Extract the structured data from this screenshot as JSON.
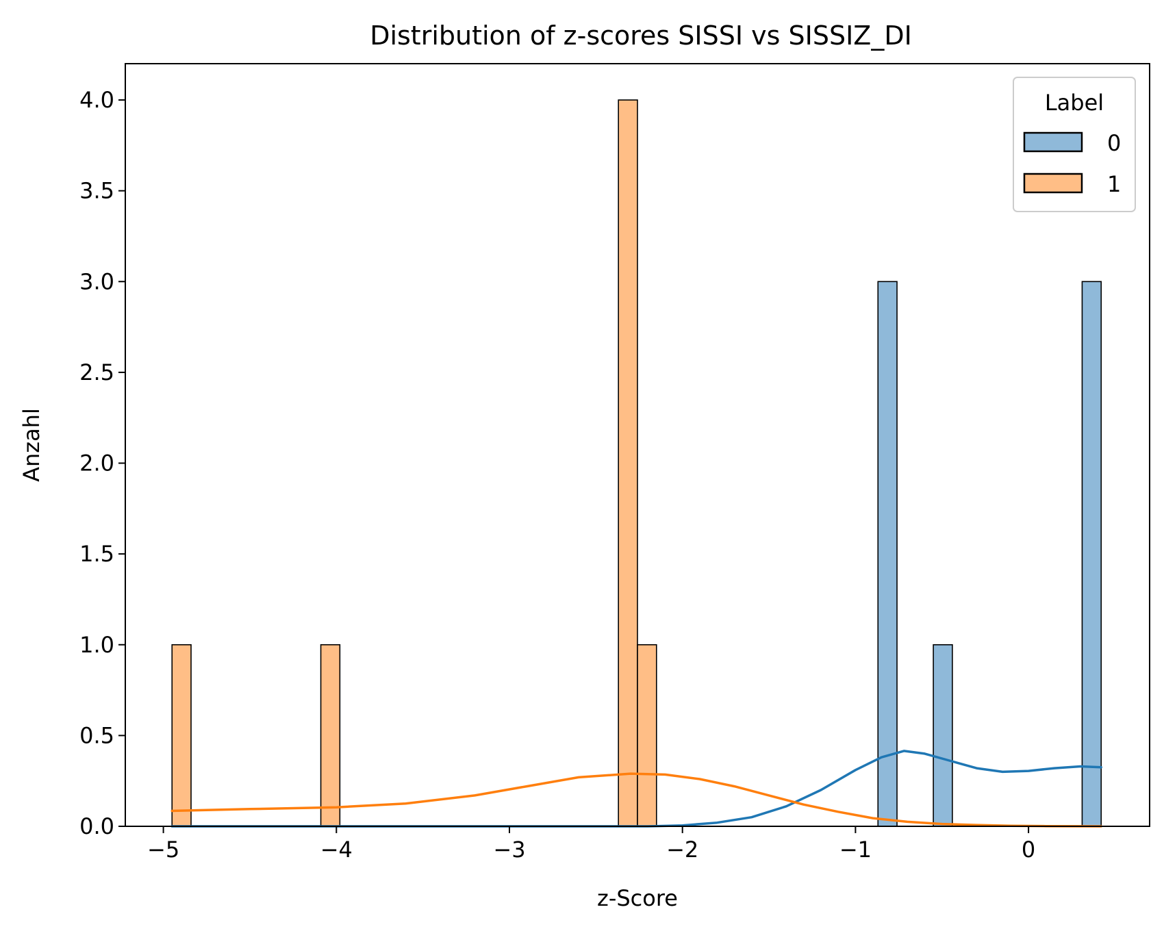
{
  "chart_data": {
    "type": "bar",
    "title": "Distribution of z-scores SISSI vs SISSIZ_DI",
    "xlabel": "z-Score",
    "ylabel": "Anzahl",
    "xlim": [
      -5.22,
      0.7
    ],
    "ylim": [
      0,
      4.2
    ],
    "xticks": [
      -5,
      -4,
      -3,
      -2,
      -1,
      0
    ],
    "xtick_labels": [
      "−5",
      "−4",
      "−3",
      "−2",
      "−1",
      "0"
    ],
    "yticks": [
      0.0,
      0.5,
      1.0,
      1.5,
      2.0,
      2.5,
      3.0,
      3.5,
      4.0
    ],
    "ytick_labels": [
      "0.0",
      "0.5",
      "1.0",
      "1.5",
      "2.0",
      "2.5",
      "3.0",
      "3.5",
      "4.0"
    ],
    "grid": false,
    "legend": {
      "title": "Label",
      "position": "top-right"
    },
    "series": [
      {
        "name": "0",
        "color": "#1f77b4",
        "bar_color": "#8fb9d9",
        "bars": [
          {
            "x0": -0.87,
            "x1": -0.76,
            "count": 3
          },
          {
            "x0": -0.55,
            "x1": -0.44,
            "count": 1
          },
          {
            "x0": 0.31,
            "x1": 0.42,
            "count": 3
          }
        ],
        "kde": {
          "x": [
            -4.95,
            -3.0,
            -2.2,
            -2.0,
            -1.8,
            -1.6,
            -1.4,
            -1.2,
            -1.0,
            -0.85,
            -0.72,
            -0.6,
            -0.45,
            -0.3,
            -0.15,
            0.0,
            0.15,
            0.3,
            0.42
          ],
          "y": [
            0.0,
            0.0,
            0.0,
            0.005,
            0.02,
            0.05,
            0.11,
            0.2,
            0.31,
            0.38,
            0.415,
            0.4,
            0.36,
            0.32,
            0.3,
            0.305,
            0.32,
            0.33,
            0.325
          ]
        }
      },
      {
        "name": "1",
        "color": "#ff7f0e",
        "bar_color": "#ffbe86",
        "bars": [
          {
            "x0": -4.95,
            "x1": -4.84,
            "count": 1
          },
          {
            "x0": -4.09,
            "x1": -3.98,
            "count": 1
          },
          {
            "x0": -2.37,
            "x1": -2.26,
            "count": 4
          },
          {
            "x0": -2.26,
            "x1": -2.15,
            "count": 1
          }
        ],
        "kde": {
          "x": [
            -4.95,
            -4.5,
            -4.0,
            -3.6,
            -3.2,
            -2.9,
            -2.6,
            -2.3,
            -2.1,
            -1.9,
            -1.7,
            -1.5,
            -1.3,
            -1.1,
            -0.9,
            -0.7,
            -0.5,
            -0.3,
            -0.1,
            0.1,
            0.42
          ],
          "y": [
            0.085,
            0.095,
            0.105,
            0.125,
            0.17,
            0.22,
            0.27,
            0.29,
            0.285,
            0.26,
            0.22,
            0.17,
            0.12,
            0.08,
            0.045,
            0.025,
            0.013,
            0.007,
            0.003,
            0.001,
            0.0
          ]
        }
      }
    ]
  }
}
